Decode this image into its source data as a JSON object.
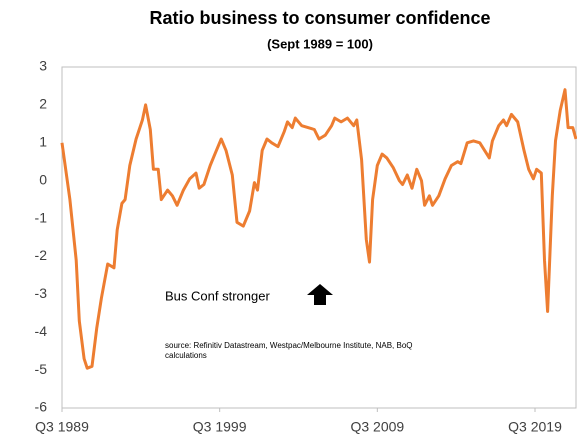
{
  "chart_data": {
    "type": "line",
    "title": "Ratio business to consumer confidence",
    "subtitle": "(Sept 1989 = 100)",
    "annotation": "Bus Conf stronger",
    "source": [
      "source:  Refinitiv Datastream, Westpac/Melbourne Institute, NAB, BoQ",
      "calculations"
    ],
    "x": [
      1989.5,
      1990.0,
      1990.4,
      1990.6,
      1990.9,
      1991.1,
      1991.4,
      1991.7,
      1992.0,
      1992.4,
      1992.8,
      1993.0,
      1993.3,
      1993.5,
      1993.8,
      1994.2,
      1994.6,
      1994.8,
      1995.1,
      1995.3,
      1995.6,
      1995.8,
      1996.2,
      1996.5,
      1996.8,
      1997.2,
      1997.6,
      1998.0,
      1998.2,
      1998.5,
      1998.9,
      1999.2,
      1999.6,
      1999.9,
      2000.3,
      2000.6,
      2001.0,
      2001.4,
      2001.7,
      2001.9,
      2002.2,
      2002.5,
      2002.8,
      2003.2,
      2003.6,
      2003.8,
      2004.1,
      2004.3,
      2004.7,
      2005.1,
      2005.5,
      2005.8,
      2006.2,
      2006.6,
      2006.8,
      2007.2,
      2007.6,
      2008.0,
      2008.2,
      2008.5,
      2008.8,
      2009.0,
      2009.2,
      2009.5,
      2009.8,
      2010.1,
      2010.5,
      2010.9,
      2011.1,
      2011.4,
      2011.7,
      2012.0,
      2012.3,
      2012.5,
      2012.8,
      2013.0,
      2013.4,
      2013.8,
      2014.2,
      2014.6,
      2014.8,
      2015.2,
      2015.6,
      2016.0,
      2016.3,
      2016.6,
      2016.8,
      2017.2,
      2017.5,
      2017.7,
      2018.0,
      2018.4,
      2018.8,
      2019.1,
      2019.4,
      2019.6,
      2019.9,
      2020.1,
      2020.3,
      2020.6,
      2020.8,
      2021.1,
      2021.4,
      2021.6,
      2021.9,
      2022.1
    ],
    "series": [
      {
        "name": "Ratio",
        "color": "#ed7d31",
        "values": [
          1.0,
          -0.5,
          -2.1,
          -3.7,
          -4.7,
          -4.95,
          -4.9,
          -3.9,
          -3.1,
          -2.2,
          -2.3,
          -1.3,
          -0.6,
          -0.5,
          0.4,
          1.1,
          1.6,
          2.0,
          1.35,
          0.3,
          0.3,
          -0.5,
          -0.25,
          -0.4,
          -0.65,
          -0.25,
          0.05,
          0.2,
          -0.2,
          -0.1,
          0.4,
          0.7,
          1.1,
          0.8,
          0.15,
          -1.1,
          -1.2,
          -0.8,
          -0.05,
          -0.25,
          0.8,
          1.1,
          1.0,
          0.9,
          1.3,
          1.55,
          1.4,
          1.65,
          1.45,
          1.4,
          1.35,
          1.1,
          1.2,
          1.45,
          1.65,
          1.55,
          1.65,
          1.45,
          1.6,
          0.55,
          -1.55,
          -2.15,
          -0.5,
          0.4,
          0.7,
          0.6,
          0.35,
          0.0,
          -0.1,
          0.15,
          -0.2,
          0.3,
          0.0,
          -0.65,
          -0.4,
          -0.65,
          -0.4,
          0.05,
          0.4,
          0.5,
          0.45,
          1.0,
          1.05,
          1.0,
          0.8,
          0.6,
          1.05,
          1.45,
          1.6,
          1.45,
          1.75,
          1.55,
          0.8,
          0.3,
          0.05,
          0.3,
          0.2,
          -2.1,
          -3.45,
          -0.4,
          1.05,
          1.85,
          2.4,
          1.4,
          1.4,
          1.1
        ]
      }
    ],
    "xlim": [
      1989.5,
      2022.1
    ],
    "xticks": [
      {
        "value": 1989.5,
        "label": "Q3 1989"
      },
      {
        "value": 1999.5,
        "label": "Q3 1999"
      },
      {
        "value": 2009.5,
        "label": "Q3 2009"
      },
      {
        "value": 2019.5,
        "label": "Q3 2019"
      }
    ],
    "ylim": [
      -6,
      3
    ],
    "yticks": [
      -6,
      -5,
      -4,
      -3,
      -2,
      -1,
      0,
      1,
      2,
      3
    ],
    "grid": false
  }
}
